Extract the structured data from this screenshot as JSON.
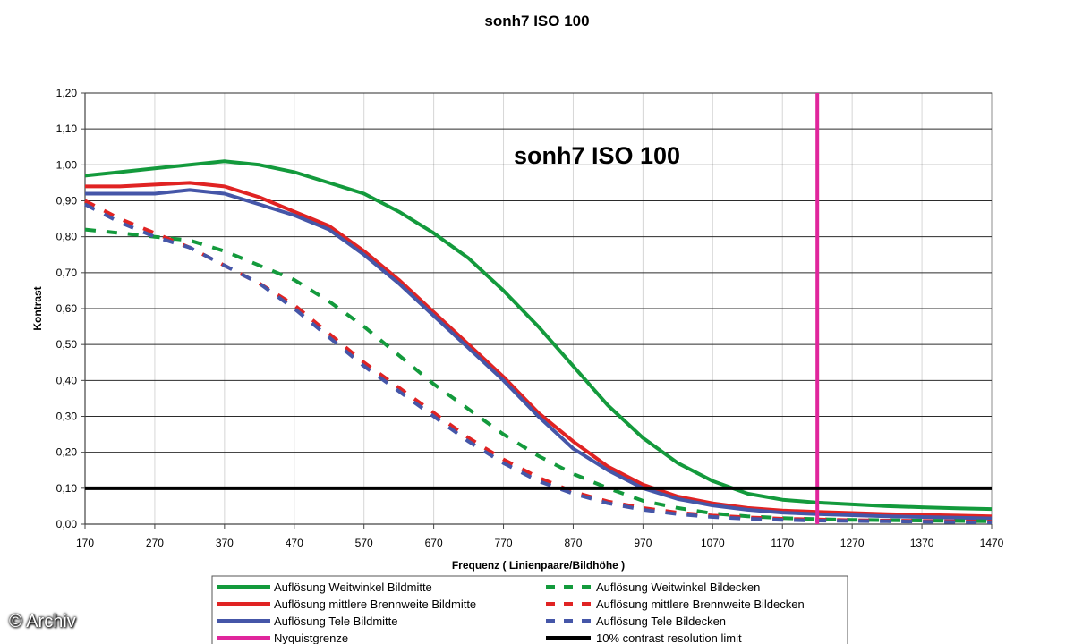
{
  "chart_data": {
    "type": "line",
    "title": "sonh7 ISO 100",
    "inplot_title": "sonh7 ISO 100",
    "xlabel": "Frequenz ( Linienpaare/Bildhöhe )",
    "ylabel": "Kontrast",
    "xlim": [
      170,
      1470
    ],
    "ylim": [
      0,
      1.2
    ],
    "x_ticks": [
      "170",
      "270",
      "370",
      "470",
      "570",
      "670",
      "770",
      "870",
      "970",
      "1070",
      "1170",
      "1270",
      "1370",
      "1470"
    ],
    "y_ticks": [
      "0,00",
      "0,10",
      "0,20",
      "0,30",
      "0,40",
      "0,50",
      "0,60",
      "0,70",
      "0,80",
      "0,90",
      "1,00",
      "1,10",
      "1,20"
    ],
    "grid": "horizontal",
    "legend_position": "bottom",
    "series": [
      {
        "name": "Auflösung Weitwinkel Bildmitte",
        "color": "#139a3c",
        "style": "solid",
        "x": [
          170,
          220,
          270,
          320,
          370,
          420,
          470,
          520,
          570,
          620,
          670,
          720,
          770,
          820,
          870,
          920,
          970,
          1020,
          1070,
          1120,
          1170,
          1220,
          1270,
          1320,
          1370,
          1420,
          1470
        ],
        "y": [
          0.97,
          0.98,
          0.99,
          1.0,
          1.01,
          1.0,
          0.98,
          0.95,
          0.92,
          0.87,
          0.81,
          0.74,
          0.65,
          0.55,
          0.44,
          0.33,
          0.24,
          0.17,
          0.12,
          0.085,
          0.068,
          0.06,
          0.055,
          0.05,
          0.047,
          0.044,
          0.042
        ]
      },
      {
        "name": "Auflösung mittlere Brennweite Bildmitte",
        "color": "#e02323",
        "style": "solid",
        "x": [
          170,
          220,
          270,
          320,
          370,
          420,
          470,
          520,
          570,
          620,
          670,
          720,
          770,
          820,
          870,
          920,
          970,
          1020,
          1070,
          1120,
          1170,
          1220,
          1270,
          1320,
          1370,
          1420,
          1470
        ],
        "y": [
          0.94,
          0.94,
          0.945,
          0.95,
          0.94,
          0.91,
          0.87,
          0.83,
          0.76,
          0.68,
          0.59,
          0.5,
          0.41,
          0.31,
          0.23,
          0.16,
          0.11,
          0.077,
          0.058,
          0.045,
          0.038,
          0.034,
          0.031,
          0.028,
          0.026,
          0.024,
          0.022
        ]
      },
      {
        "name": "Auflösung Tele Bildmitte",
        "color": "#4556a8",
        "style": "solid",
        "x": [
          170,
          220,
          270,
          320,
          370,
          420,
          470,
          520,
          570,
          620,
          670,
          720,
          770,
          820,
          870,
          920,
          970,
          1020,
          1070,
          1120,
          1170,
          1220,
          1270,
          1320,
          1370,
          1420,
          1470
        ],
        "y": [
          0.92,
          0.92,
          0.92,
          0.93,
          0.92,
          0.89,
          0.86,
          0.82,
          0.75,
          0.67,
          0.58,
          0.49,
          0.4,
          0.3,
          0.21,
          0.15,
          0.1,
          0.07,
          0.052,
          0.04,
          0.032,
          0.028,
          0.025,
          0.022,
          0.02,
          0.018,
          0.016
        ]
      },
      {
        "name": "Auflösung Weitwinkel Bildecken",
        "color": "#139a3c",
        "style": "dashed",
        "x": [
          170,
          220,
          270,
          320,
          370,
          420,
          470,
          520,
          570,
          620,
          670,
          720,
          770,
          820,
          870,
          920,
          970,
          1020,
          1070,
          1120,
          1170,
          1220,
          1270,
          1320,
          1370,
          1420,
          1470
        ],
        "y": [
          0.82,
          0.81,
          0.8,
          0.79,
          0.76,
          0.72,
          0.68,
          0.62,
          0.55,
          0.47,
          0.39,
          0.32,
          0.25,
          0.19,
          0.14,
          0.1,
          0.065,
          0.045,
          0.03,
          0.022,
          0.017,
          0.014,
          0.012,
          0.011,
          0.01,
          0.009,
          0.008
        ]
      },
      {
        "name": "Auflösung mittlere Brennweite Bildecken",
        "color": "#e02323",
        "style": "dashed",
        "x": [
          170,
          220,
          270,
          320,
          370,
          420,
          470,
          520,
          570,
          620,
          670,
          720,
          770,
          820,
          870,
          920,
          970,
          1020,
          1070,
          1120,
          1170,
          1220,
          1270,
          1320,
          1370,
          1420,
          1470
        ],
        "y": [
          0.9,
          0.85,
          0.81,
          0.77,
          0.72,
          0.67,
          0.61,
          0.53,
          0.45,
          0.38,
          0.31,
          0.24,
          0.18,
          0.13,
          0.09,
          0.063,
          0.045,
          0.032,
          0.024,
          0.019,
          0.015,
          0.013,
          0.011,
          0.01,
          0.009,
          0.008,
          0.007
        ]
      },
      {
        "name": "Auflösung Tele Bildecken",
        "color": "#4556a8",
        "style": "dashed",
        "x": [
          170,
          220,
          270,
          320,
          370,
          420,
          470,
          520,
          570,
          620,
          670,
          720,
          770,
          820,
          870,
          920,
          970,
          1020,
          1070,
          1120,
          1170,
          1220,
          1270,
          1320,
          1370,
          1420,
          1470
        ],
        "y": [
          0.89,
          0.84,
          0.8,
          0.77,
          0.72,
          0.67,
          0.6,
          0.52,
          0.44,
          0.37,
          0.3,
          0.23,
          0.17,
          0.12,
          0.085,
          0.058,
          0.04,
          0.028,
          0.02,
          0.015,
          0.012,
          0.01,
          0.009,
          0.008,
          0.007,
          0.006,
          0.005
        ]
      }
    ],
    "reference_lines": [
      {
        "name": "Nyquistgrenze",
        "color": "#e0269c",
        "orientation": "vertical",
        "value": 1220
      },
      {
        "name": "10% contrast resolution limit",
        "color": "#000000",
        "orientation": "horizontal",
        "value": 0.1
      }
    ]
  },
  "credit": "© Archiv"
}
